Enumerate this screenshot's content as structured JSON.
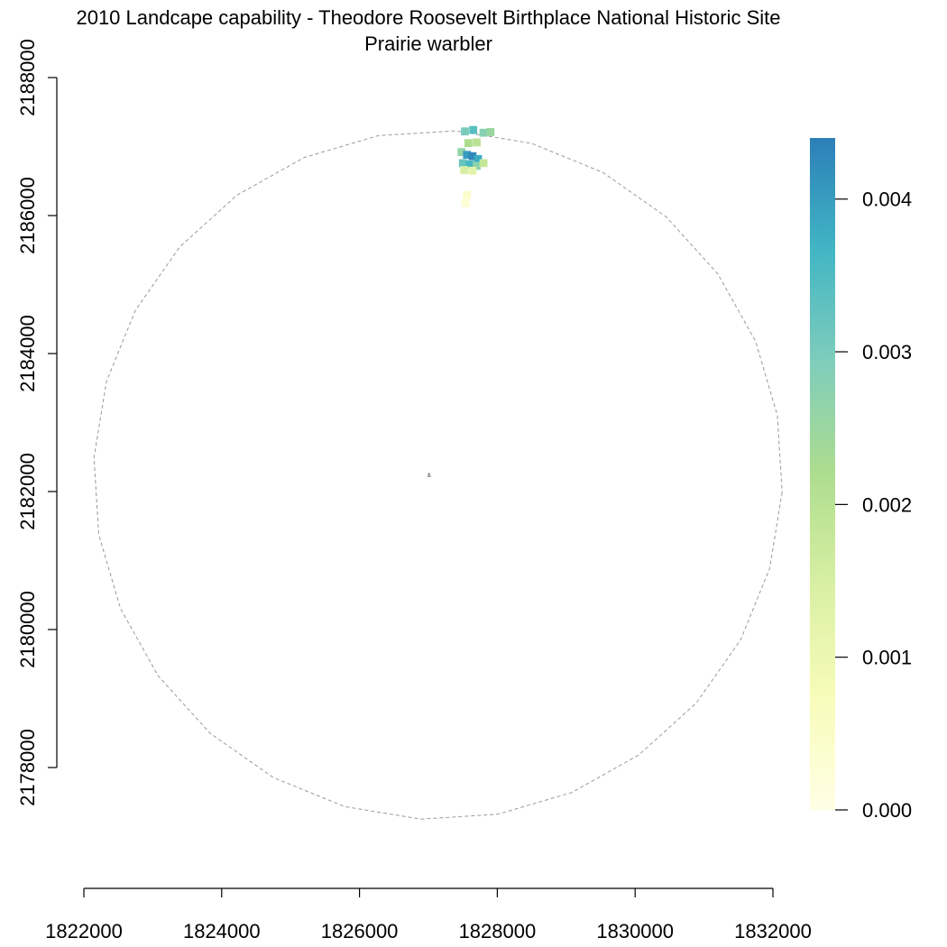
{
  "chart_data": {
    "type": "heatmap",
    "title": "2010 Landcape capability - Theodore Roosevelt Birthplace National Historic Site",
    "subtitle": "Prairie warbler",
    "xlabel": "",
    "ylabel": "",
    "xlim": [
      1822000,
      1832000
    ],
    "ylim": [
      2178000,
      2188000
    ],
    "x_ticks": [
      "1822000",
      "1824000",
      "1826000",
      "1828000",
      "1830000",
      "1832000"
    ],
    "y_ticks": [
      "2178000",
      "2180000",
      "2182000",
      "2184000",
      "2186000",
      "2188000"
    ],
    "legend": {
      "placement": "right",
      "range": [
        0,
        0.0044
      ],
      "ticks": [
        "0.000",
        "0.001",
        "0.002",
        "0.003",
        "0.004"
      ],
      "colors": [
        "#ffffe5",
        "#f7fcb9",
        "#d9f0a3",
        "#addd8e",
        "#7fcdbb",
        "#41b6c4",
        "#2c7fb8"
      ]
    },
    "boundary_circle": {
      "center": [
        1827140,
        2182240
      ],
      "radius": 5000
    },
    "site_marker": [
      1827010,
      2182240
    ],
    "cells": [
      {
        "x": 1827530,
        "y": 2187220,
        "v": 0.003
      },
      {
        "x": 1827650,
        "y": 2187240,
        "v": 0.0034
      },
      {
        "x": 1827800,
        "y": 2187200,
        "v": 0.0028
      },
      {
        "x": 1827900,
        "y": 2187210,
        "v": 0.0025
      },
      {
        "x": 1827580,
        "y": 2187050,
        "v": 0.0022
      },
      {
        "x": 1827700,
        "y": 2187060,
        "v": 0.002
      },
      {
        "x": 1827480,
        "y": 2186920,
        "v": 0.0026
      },
      {
        "x": 1827560,
        "y": 2186880,
        "v": 0.004
      },
      {
        "x": 1827640,
        "y": 2186860,
        "v": 0.0043
      },
      {
        "x": 1827720,
        "y": 2186820,
        "v": 0.0038
      },
      {
        "x": 1827500,
        "y": 2186760,
        "v": 0.0032
      },
      {
        "x": 1827600,
        "y": 2186740,
        "v": 0.0036
      },
      {
        "x": 1827700,
        "y": 2186720,
        "v": 0.0027
      },
      {
        "x": 1827800,
        "y": 2186760,
        "v": 0.0018
      },
      {
        "x": 1827520,
        "y": 2186660,
        "v": 0.0015
      },
      {
        "x": 1827640,
        "y": 2186650,
        "v": 0.0012
      },
      {
        "x": 1827560,
        "y": 2186300,
        "v": 0.0004
      },
      {
        "x": 1827540,
        "y": 2186180,
        "v": 0.0003
      }
    ]
  }
}
